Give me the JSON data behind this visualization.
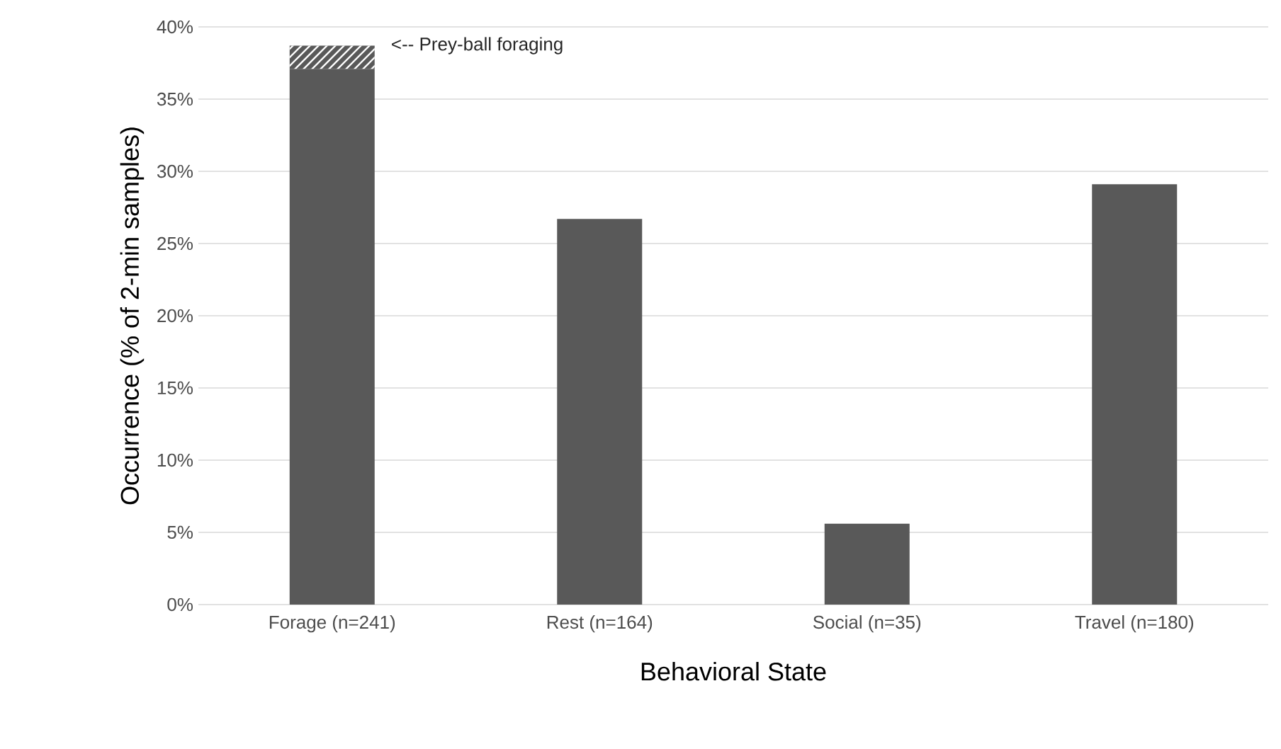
{
  "chart_data": {
    "type": "bar",
    "stacked": true,
    "xlabel": "Behavioral State",
    "ylabel": "Occurrence (% of 2-min samples)",
    "categories": [
      "Forage (n=241)",
      "Rest (n=164)",
      "Social (n=35)",
      "Travel (n=180)"
    ],
    "series": [
      {
        "color": "#595959",
        "values": [
          37.1,
          26.7,
          5.6,
          29.1
        ]
      },
      {
        "color": "#595959",
        "values": [
          1.6,
          null,
          null,
          null
        ]
      }
    ],
    "ylim": [
      0,
      40
    ],
    "yticks": [
      {
        "value": 0,
        "label": "0%"
      },
      {
        "value": 5,
        "label": "5%"
      },
      {
        "value": 10,
        "label": "10%"
      },
      {
        "value": 15,
        "label": "15%"
      },
      {
        "value": 20,
        "label": "20%"
      },
      {
        "value": 25,
        "label": "25%"
      },
      {
        "value": 30,
        "label": "30%"
      },
      {
        "value": 35,
        "label": "35%"
      },
      {
        "value": 40,
        "label": "40%"
      }
    ],
    "grid": "y",
    "annotations": [
      "<-- Prey-ball foraging"
    ]
  }
}
